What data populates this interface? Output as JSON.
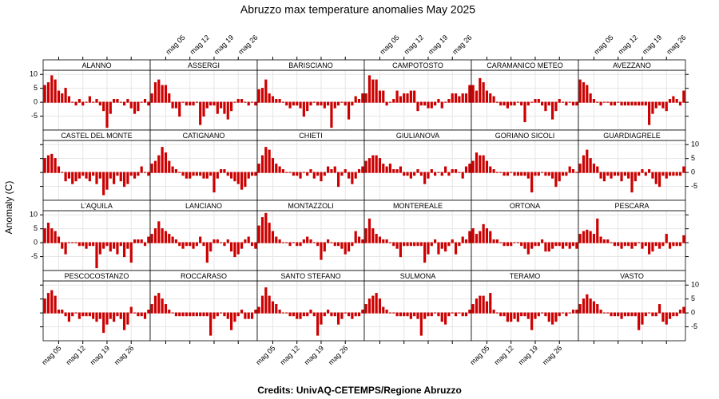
{
  "chart_data": {
    "type": "bar",
    "title": "Abruzzo max temperature anomalies May 2025",
    "ylabel": "Anomaly (C)",
    "credits": "Credits: UnivAQ-CETEMPS/Regione Abruzzo",
    "color": "#cc0000",
    "grid": true,
    "x": [
      1,
      2,
      3,
      4,
      5,
      6,
      7,
      8,
      9,
      10,
      11,
      12,
      13,
      14,
      15,
      16,
      17,
      18,
      19,
      20,
      21,
      22,
      23,
      24,
      25,
      26,
      27,
      28,
      29,
      30,
      31
    ],
    "xlim": [
      0.5,
      31.5
    ],
    "xticks": [
      {
        "value": 5,
        "label": "mag 05"
      },
      {
        "value": 12,
        "label": "mag 12"
      },
      {
        "value": 19,
        "label": "mag 19"
      },
      {
        "value": 26,
        "label": "mag 26"
      }
    ],
    "ylim": [
      -10,
      11.5
    ],
    "yticks": [
      -5,
      0,
      5,
      10
    ],
    "series": [
      {
        "name": "ALANNO",
        "values": [
          6,
          7,
          9.5,
          8,
          4,
          3,
          5,
          2,
          0,
          -1,
          1,
          -1,
          0,
          2,
          0,
          1,
          -1,
          -3,
          -9,
          -4,
          1,
          1,
          0,
          -1,
          1,
          -2,
          -4,
          -3,
          0,
          1,
          -1
        ]
      },
      {
        "name": "ASSERGI",
        "values": [
          3,
          7,
          8,
          6,
          6,
          3,
          -2,
          -2,
          -5,
          0,
          -1,
          -1,
          -1,
          0,
          -8,
          -5,
          -2,
          -1,
          -1,
          -4,
          -2,
          -4,
          -6,
          -3,
          0,
          1,
          1,
          0,
          -1,
          0,
          -1
        ]
      },
      {
        "name": "BARISCIANO",
        "values": [
          4.5,
          5,
          8,
          3,
          2,
          1,
          1,
          0,
          -1,
          -2,
          -1,
          -1,
          -2,
          -5,
          -3,
          -1,
          0,
          -1,
          -1,
          -2,
          -1,
          -9,
          -2,
          -1,
          0,
          -1,
          -6,
          -1,
          2,
          1,
          3
        ]
      },
      {
        "name": "CAMPOTOSTO",
        "values": [
          3,
          9.5,
          8,
          8,
          4,
          4,
          -1,
          0,
          1,
          4,
          2,
          3,
          3,
          4,
          4,
          -3,
          -1,
          -1,
          -2,
          -2,
          -1,
          1,
          -2,
          0,
          1,
          3,
          3,
          2,
          3,
          3,
          6
        ]
      },
      {
        "name": "CARAMANICO METEO",
        "values": [
          6,
          4,
          8.5,
          7,
          4,
          3,
          2,
          0,
          -1,
          -1,
          -2,
          -1,
          -1,
          0,
          -1,
          -7,
          -1,
          0,
          1,
          1,
          -1,
          -3,
          -1,
          -6,
          -3,
          1,
          0,
          -1,
          0,
          -1,
          -1
        ]
      },
      {
        "name": "AVEZZANO",
        "values": [
          8,
          7,
          6,
          3,
          1,
          0,
          -1,
          0,
          0,
          -1,
          -1,
          0,
          -1,
          -1,
          -1,
          -1,
          -1,
          -1,
          -1,
          -1,
          -8,
          -4,
          -2,
          -1,
          -2,
          -3,
          1,
          2,
          1,
          -1,
          4
        ]
      },
      {
        "name": "CASTEL DEL MONTE",
        "values": [
          5,
          6,
          6.5,
          5,
          2,
          0,
          -3,
          -2,
          -4,
          -3,
          -2,
          -1,
          -2,
          -3,
          -1,
          -4,
          -2,
          -8,
          -6,
          -2,
          -4,
          -1,
          -3,
          -5,
          -4,
          -1,
          -2,
          -1,
          2,
          0,
          -1
        ]
      },
      {
        "name": "CATIGNANO",
        "values": [
          3,
          4,
          6,
          9,
          7,
          4,
          2,
          1,
          0,
          -1,
          -2,
          -2,
          -1,
          -1,
          -1,
          -2,
          -2,
          -1,
          -7,
          -2,
          1,
          1,
          -1,
          -2,
          -3,
          -4,
          -6,
          -5,
          -2,
          -1,
          -1
        ]
      },
      {
        "name": "CHIETI",
        "values": [
          3,
          6,
          9,
          8,
          5,
          3,
          2,
          1,
          0,
          0,
          -1,
          -1,
          -2,
          0,
          -1,
          1,
          -2,
          -1,
          -3,
          -1,
          2,
          1,
          2,
          -5,
          -1,
          1,
          -2,
          -4,
          -2,
          1,
          2
        ]
      },
      {
        "name": "GIULIANOVA",
        "values": [
          4,
          5,
          6,
          6,
          5,
          3,
          2,
          3,
          1,
          1,
          2,
          -1,
          -1,
          -2,
          -1,
          1,
          -1,
          -4,
          -2,
          1,
          -1,
          0,
          -1,
          2,
          -1,
          1,
          1,
          0,
          -2,
          2,
          3
        ]
      },
      {
        "name": "GORIANO SICOLI",
        "values": [
          4,
          7,
          6,
          6,
          4,
          2,
          1,
          0,
          0,
          -1,
          -1,
          0,
          -1,
          -1,
          -1,
          -1,
          -2,
          -7,
          -1,
          -1,
          0,
          -1,
          -1,
          -2,
          -5,
          -3,
          -1,
          -1,
          2,
          1,
          0
        ]
      },
      {
        "name": "GUARDIAGRELE",
        "values": [
          3,
          6,
          8,
          5,
          3,
          2,
          -2,
          -3,
          -1,
          -2,
          -1,
          -1,
          -3,
          -1,
          -2,
          -7,
          -3,
          -1,
          1,
          -1,
          1,
          -2,
          -4,
          -5,
          -1,
          -2,
          -1,
          -1,
          -1,
          -1,
          2
        ]
      },
      {
        "name": "L'AQUILA",
        "values": [
          5,
          7,
          5,
          4,
          2,
          -2,
          -4,
          0,
          0,
          0,
          -1,
          -1,
          -2,
          -1,
          -1,
          -9,
          -4,
          -2,
          -1,
          -3,
          -2,
          -4,
          -1,
          -5,
          -2,
          -7,
          1,
          1,
          1,
          -1,
          2
        ]
      },
      {
        "name": "LANCIANO",
        "values": [
          3,
          5,
          7.5,
          5,
          4,
          3,
          2,
          1,
          -1,
          -2,
          -1,
          -1,
          -2,
          -1,
          2,
          -1,
          -7,
          -3,
          1,
          1,
          0,
          -1,
          1,
          -3,
          -5,
          -4,
          -2,
          1,
          2,
          -1,
          -2
        ]
      },
      {
        "name": "MONTAZZOLI",
        "values": [
          6,
          9,
          10.5,
          7,
          4,
          2,
          1,
          0,
          0,
          -1,
          0,
          -1,
          -1,
          1,
          2,
          1,
          0,
          -1,
          -6,
          -3,
          1,
          0,
          -1,
          -1,
          -2,
          -4,
          -3,
          -1,
          4,
          2,
          1
        ]
      },
      {
        "name": "MONTEREALE",
        "values": [
          5,
          8.5,
          5,
          3,
          2,
          1,
          1,
          0,
          -1,
          -2,
          -5,
          -1,
          -1,
          -1,
          -1,
          -1,
          -1,
          -7,
          -4,
          -1,
          1,
          -4,
          -2,
          -3,
          -1,
          1,
          -4,
          -1,
          2,
          1,
          4
        ]
      },
      {
        "name": "ORTONA",
        "values": [
          5,
          3,
          4,
          6.5,
          5,
          4,
          1,
          1,
          0,
          -1,
          -1,
          -1,
          0,
          0,
          -1,
          -2,
          -4,
          -2,
          -1,
          -1,
          1,
          -3,
          -3,
          -2,
          -1,
          -1,
          -2,
          -1,
          -2,
          -1,
          -2
        ]
      },
      {
        "name": "PESCARA",
        "values": [
          3,
          4,
          4.5,
          4,
          3,
          8.5,
          2,
          1,
          1,
          0,
          -1,
          -1,
          -2,
          -1,
          -1,
          -2,
          -1,
          0,
          -2,
          -1,
          -4,
          -3,
          -1,
          -2,
          -1,
          3,
          -2,
          -1,
          -1,
          -1,
          2.5
        ]
      },
      {
        "name": "PESCOCOSTANZO",
        "values": [
          5,
          7,
          8,
          6,
          1,
          1,
          -1,
          -3,
          -1,
          0,
          -2,
          -1,
          -1,
          -1,
          -2,
          -3,
          -2,
          -7,
          -4,
          -2,
          -3,
          -1,
          -2,
          -6,
          -4,
          2,
          0,
          -1,
          -1,
          -2,
          1
        ]
      },
      {
        "name": "ROCCARASO",
        "values": [
          3,
          6,
          7,
          5,
          3,
          1,
          0,
          -1,
          -1,
          -1,
          -1,
          -1,
          -1,
          -1,
          -1,
          -1,
          -1,
          -8,
          -2,
          -1,
          0,
          -1,
          -2,
          -6,
          -3,
          -1,
          1,
          -2,
          -2,
          -2,
          1
        ]
      },
      {
        "name": "SANTO STEFANO",
        "values": [
          2,
          6,
          9,
          6,
          4,
          3,
          1,
          0,
          0,
          -1,
          -1,
          -2,
          -2,
          -1,
          -1,
          1,
          -1,
          -8,
          -4,
          -1,
          1,
          -1,
          -1,
          -4,
          -2,
          0,
          -1,
          -2,
          -1,
          -1,
          1
        ]
      },
      {
        "name": "SULMONA",
        "values": [
          3,
          5,
          6,
          7,
          5,
          2,
          1,
          0,
          0,
          -1,
          -1,
          -1,
          -1,
          -2,
          -1,
          -2,
          -8,
          -2,
          -1,
          -1,
          0,
          -1,
          -3,
          -4,
          -1,
          0,
          -1,
          0,
          -1,
          -1,
          1
        ]
      },
      {
        "name": "TERAMO",
        "values": [
          3,
          5,
          6,
          6,
          4,
          7,
          1,
          0,
          -1,
          -1,
          -3,
          -3,
          -2,
          -3,
          -1,
          -1,
          -2,
          -6,
          -2,
          -1,
          0,
          -1,
          -3,
          -4,
          -3,
          -1,
          0,
          -1,
          0,
          1,
          1
        ]
      },
      {
        "name": "VASTO",
        "values": [
          3,
          5,
          6.5,
          5,
          4,
          3,
          1,
          0,
          0,
          -1,
          -1,
          -1,
          -2,
          -1,
          -1,
          -1,
          -1,
          -6,
          -4,
          -1,
          0,
          -1,
          -1,
          3,
          -3,
          -4,
          -2,
          -1,
          -1,
          1,
          2
        ]
      }
    ]
  }
}
